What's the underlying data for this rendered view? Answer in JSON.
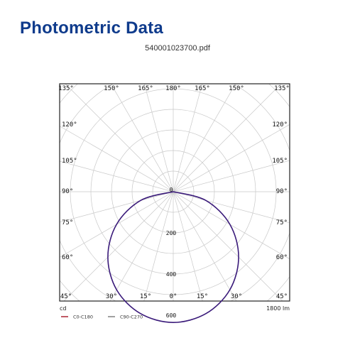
{
  "header": {
    "title": "Photometric Data",
    "file_name": "540001023700.pdf"
  },
  "chart_data": {
    "type": "polar",
    "top_angle_labels": [
      "135°",
      "150°",
      "165°",
      "180°",
      "165°",
      "150°",
      "135°"
    ],
    "bottom_angle_labels": [
      "45°",
      "30°",
      "15°",
      "0°",
      "15°",
      "30°",
      "45°"
    ],
    "left_angle_labels": [
      "120°",
      "105°",
      "90°",
      "75°",
      "60°"
    ],
    "right_angle_labels": [
      "120°",
      "105°",
      "90°",
      "75°",
      "60°"
    ],
    "radial_labels": [
      {
        "text": "0",
        "value": 0
      },
      {
        "text": "200",
        "value": 200
      },
      {
        "text": "400",
        "value": 400
      },
      {
        "text": "600",
        "value": 600
      }
    ],
    "radial_max": 700,
    "unit_label": "cd",
    "lumen_label": "1800 lm",
    "grid": true,
    "series": [
      {
        "name": "C0-C180",
        "color": "#b03040",
        "gamma_deg": [
          0,
          15,
          30,
          45,
          60,
          75,
          90
        ],
        "intensity": [
          635,
          613,
          550,
          449,
          318,
          164,
          0
        ]
      },
      {
        "name": "C90-C270",
        "color": "#888888",
        "gamma_deg": [
          0,
          15,
          30,
          45,
          60,
          75,
          90
        ],
        "intensity": [
          635,
          613,
          550,
          449,
          318,
          164,
          0
        ]
      }
    ],
    "curve_color": "#3a1a7a",
    "legend_position": "bottom-left"
  }
}
